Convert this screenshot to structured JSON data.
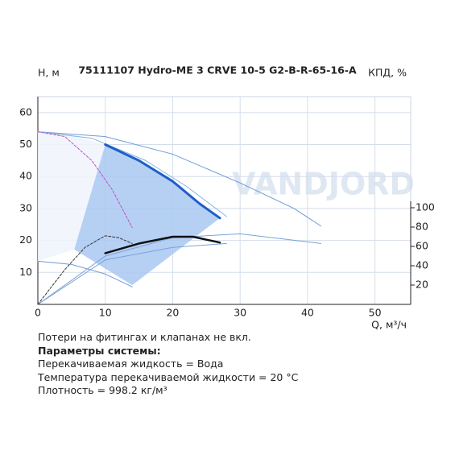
{
  "chart_data": {
    "type": "line",
    "title": "75111107 Hydro-ME 3 CRVE 10-5 G2-B-R-65-16-A",
    "ylabel": "H, м",
    "y2label": "КПД, %",
    "xlabel": "Q, м³/ч",
    "watermark": "VANDJORD",
    "xlim": [
      0,
      55.3
    ],
    "ylim": [
      0,
      65
    ],
    "y2lim": [
      0,
      215
    ],
    "xticks": [
      0,
      10,
      20,
      30,
      40,
      50
    ],
    "yticks": [
      10,
      20,
      30,
      40,
      50,
      60
    ],
    "y2ticks": [
      20,
      40,
      60,
      80,
      100
    ],
    "grid": true,
    "series": [
      {
        "style": "area",
        "color": "#f0f4fb",
        "x": [
          0,
          5,
          10,
          5.4,
          0
        ],
        "values": [
          54,
          53,
          50,
          17.2,
          13.5
        ]
      },
      {
        "style": "area",
        "color": "#a9c8f2",
        "x": [
          10,
          15,
          20,
          24,
          27,
          14,
          5.4
        ],
        "values": [
          50,
          45,
          38.5,
          31.5,
          27,
          6,
          17.2
        ]
      },
      {
        "style": "line",
        "color": "#6e9bd8",
        "width": 1,
        "x": [
          0,
          10,
          20,
          30,
          38,
          42
        ],
        "values": [
          54,
          52.5,
          47,
          38,
          30,
          24.5
        ]
      },
      {
        "style": "line",
        "color": "#8ab0e0",
        "width": 1,
        "x": [
          0,
          8,
          16,
          22,
          28
        ],
        "values": [
          54,
          52,
          45,
          37,
          27.5
        ]
      },
      {
        "style": "line",
        "color": "#6e9bd8",
        "width": 1,
        "x": [
          0,
          5,
          10,
          14
        ],
        "values": [
          13.5,
          12.5,
          9.5,
          5.5
        ]
      },
      {
        "style": "line",
        "color": "#c050c8",
        "width": 1,
        "dash": "3,2",
        "x": [
          0,
          4,
          8,
          11,
          14
        ],
        "values": [
          54,
          52.5,
          45,
          36,
          24
        ]
      },
      {
        "style": "line",
        "color": "#1f5fc8",
        "width": 3,
        "x": [
          10,
          15,
          20,
          24,
          27
        ],
        "values": [
          50,
          45,
          38.5,
          31.5,
          27
        ]
      },
      {
        "style": "line",
        "color": "#7aa2d8",
        "width": 1,
        "axis": "y2",
        "x": [
          0,
          10,
          20,
          30,
          42
        ],
        "values": [
          0,
          50,
          69,
          73,
          63
        ]
      },
      {
        "style": "line",
        "color": "#7aa2d8",
        "width": 1,
        "axis": "y2",
        "x": [
          0,
          10,
          20,
          28
        ],
        "values": [
          0,
          46,
          59,
          63
        ]
      },
      {
        "style": "line",
        "color": "#333333",
        "width": 1,
        "dash": "3,2",
        "axis": "y2",
        "x": [
          0,
          4,
          7,
          10,
          12,
          14
        ],
        "values": [
          0,
          36,
          59,
          71,
          69,
          63
        ]
      },
      {
        "style": "line",
        "color": "#111111",
        "width": 2.5,
        "axis": "y2",
        "x": [
          10,
          15,
          20,
          23,
          27
        ],
        "values": [
          53,
          63,
          70,
          70,
          64
        ]
      }
    ]
  },
  "notes": [
    "Потери на фитингах и клапанах не вкл.",
    "Параметры системы:",
    "Перекачиваемая жидкость = Вода",
    "Температура перекачиваемой жидкости = 20 °C",
    "Плотность = 998.2 кг/м³"
  ]
}
